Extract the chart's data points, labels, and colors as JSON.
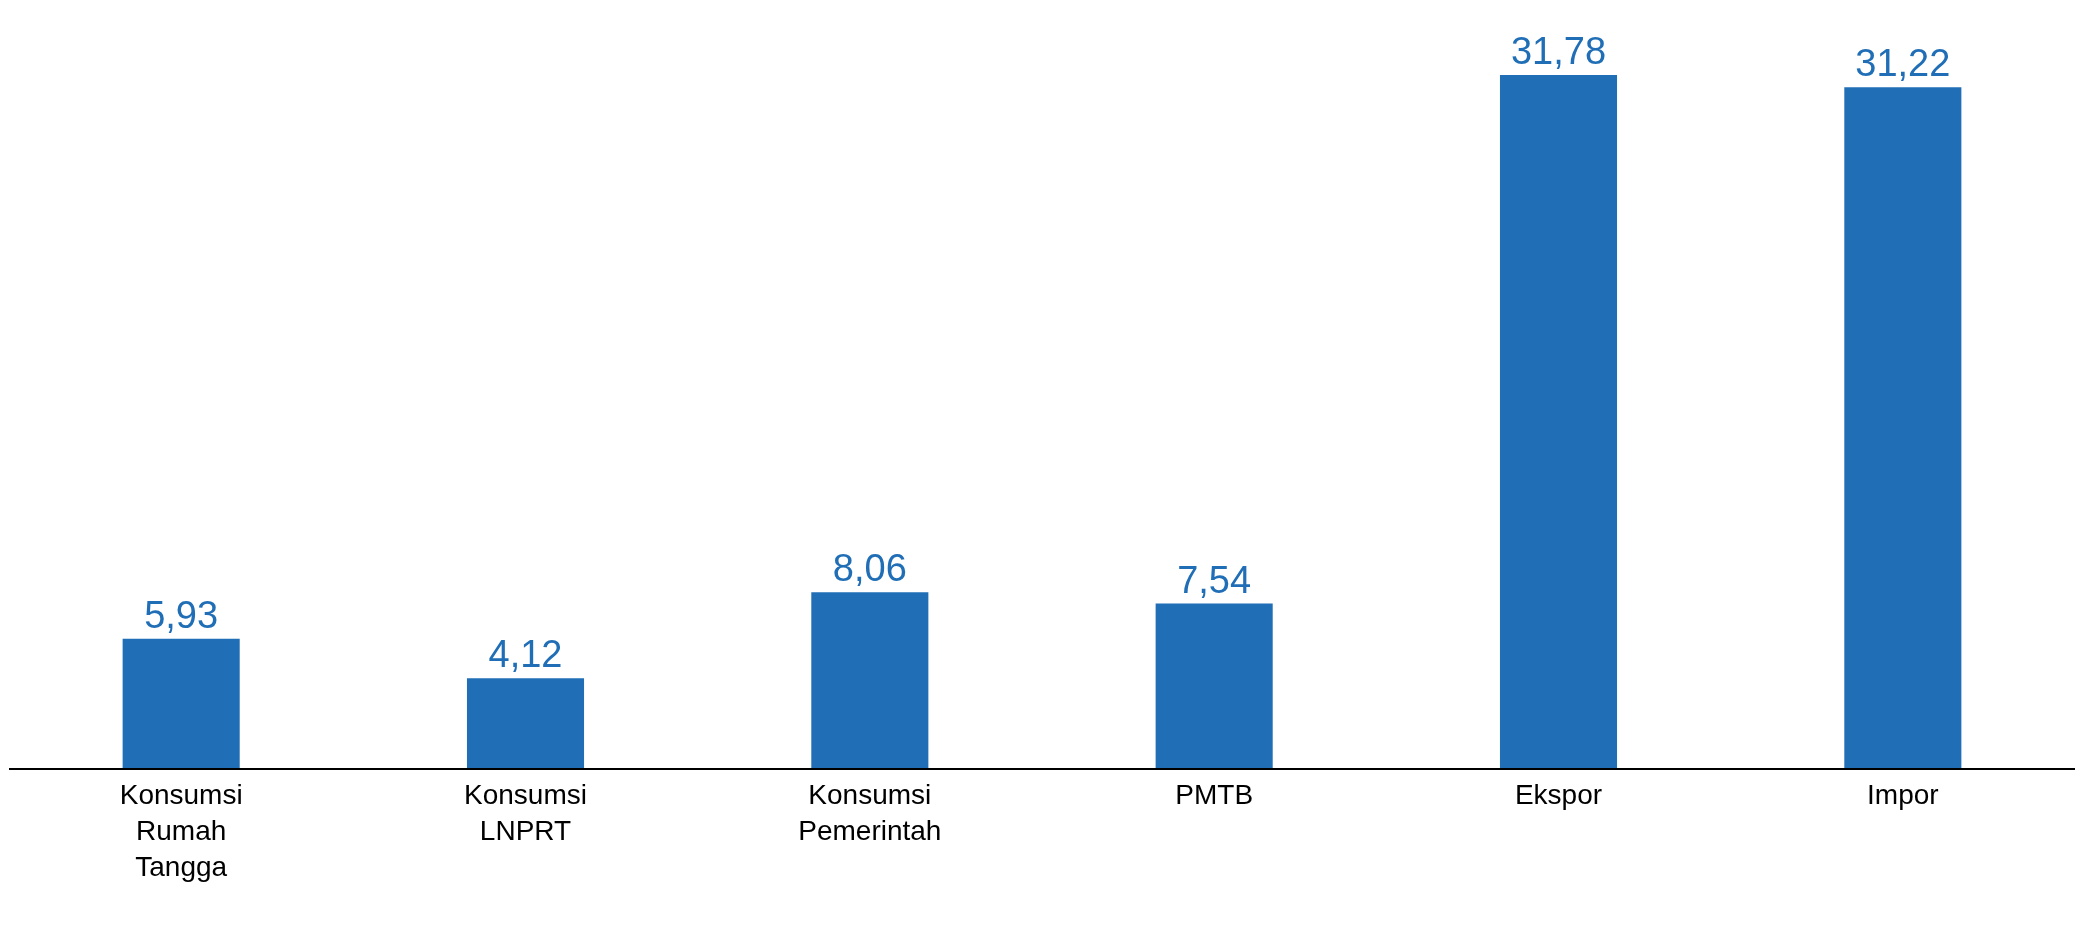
{
  "chart_data": {
    "type": "bar",
    "categories": [
      "Konsumsi Rumah Tangga",
      "Konsumsi LNPRT",
      "Konsumsi Pemerintah",
      "PMTB",
      "Ekspor",
      "Impor"
    ],
    "values": [
      5.93,
      4.12,
      8.06,
      7.54,
      31.78,
      31.22
    ],
    "value_labels": [
      "5,93",
      "4,12",
      "8,06",
      "7,54",
      "31,78",
      "31,22"
    ],
    "color": "#1f6eb6",
    "grid": false,
    "legend": false
  }
}
